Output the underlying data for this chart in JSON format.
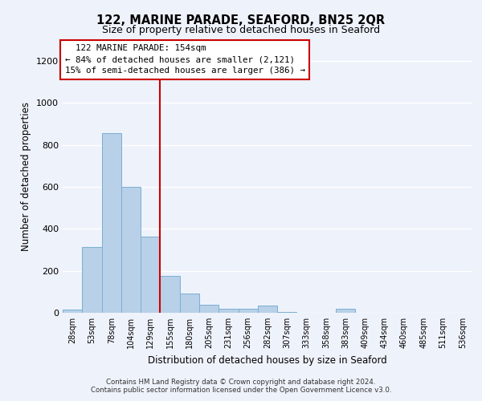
{
  "title": "122, MARINE PARADE, SEAFORD, BN25 2QR",
  "subtitle": "Size of property relative to detached houses in Seaford",
  "xlabel": "Distribution of detached houses by size in Seaford",
  "ylabel": "Number of detached properties",
  "footer_line1": "Contains HM Land Registry data © Crown copyright and database right 2024.",
  "footer_line2": "Contains public sector information licensed under the Open Government Licence v3.0.",
  "categories": [
    "28sqm",
    "53sqm",
    "78sqm",
    "104sqm",
    "129sqm",
    "155sqm",
    "180sqm",
    "205sqm",
    "231sqm",
    "256sqm",
    "282sqm",
    "307sqm",
    "333sqm",
    "358sqm",
    "383sqm",
    "409sqm",
    "434sqm",
    "460sqm",
    "485sqm",
    "511sqm",
    "536sqm"
  ],
  "values": [
    15,
    315,
    855,
    600,
    365,
    175,
    90,
    40,
    20,
    20,
    35,
    5,
    0,
    0,
    20,
    0,
    0,
    0,
    0,
    0,
    0
  ],
  "bar_color": "#b8d0e8",
  "bar_edge_color": "#7aafd4",
  "background_color": "#eef2fb",
  "grid_color": "#ffffff",
  "annotation_text": "  122 MARINE PARADE: 154sqm\n← 84% of detached houses are smaller (2,121)\n15% of semi-detached houses are larger (386) →",
  "annotation_box_color": "#ffffff",
  "annotation_box_edge_color": "#cc0000",
  "property_line_x": 4.5,
  "ylim": [
    0,
    1300
  ],
  "yticks": [
    0,
    200,
    400,
    600,
    800,
    1000,
    1200
  ]
}
